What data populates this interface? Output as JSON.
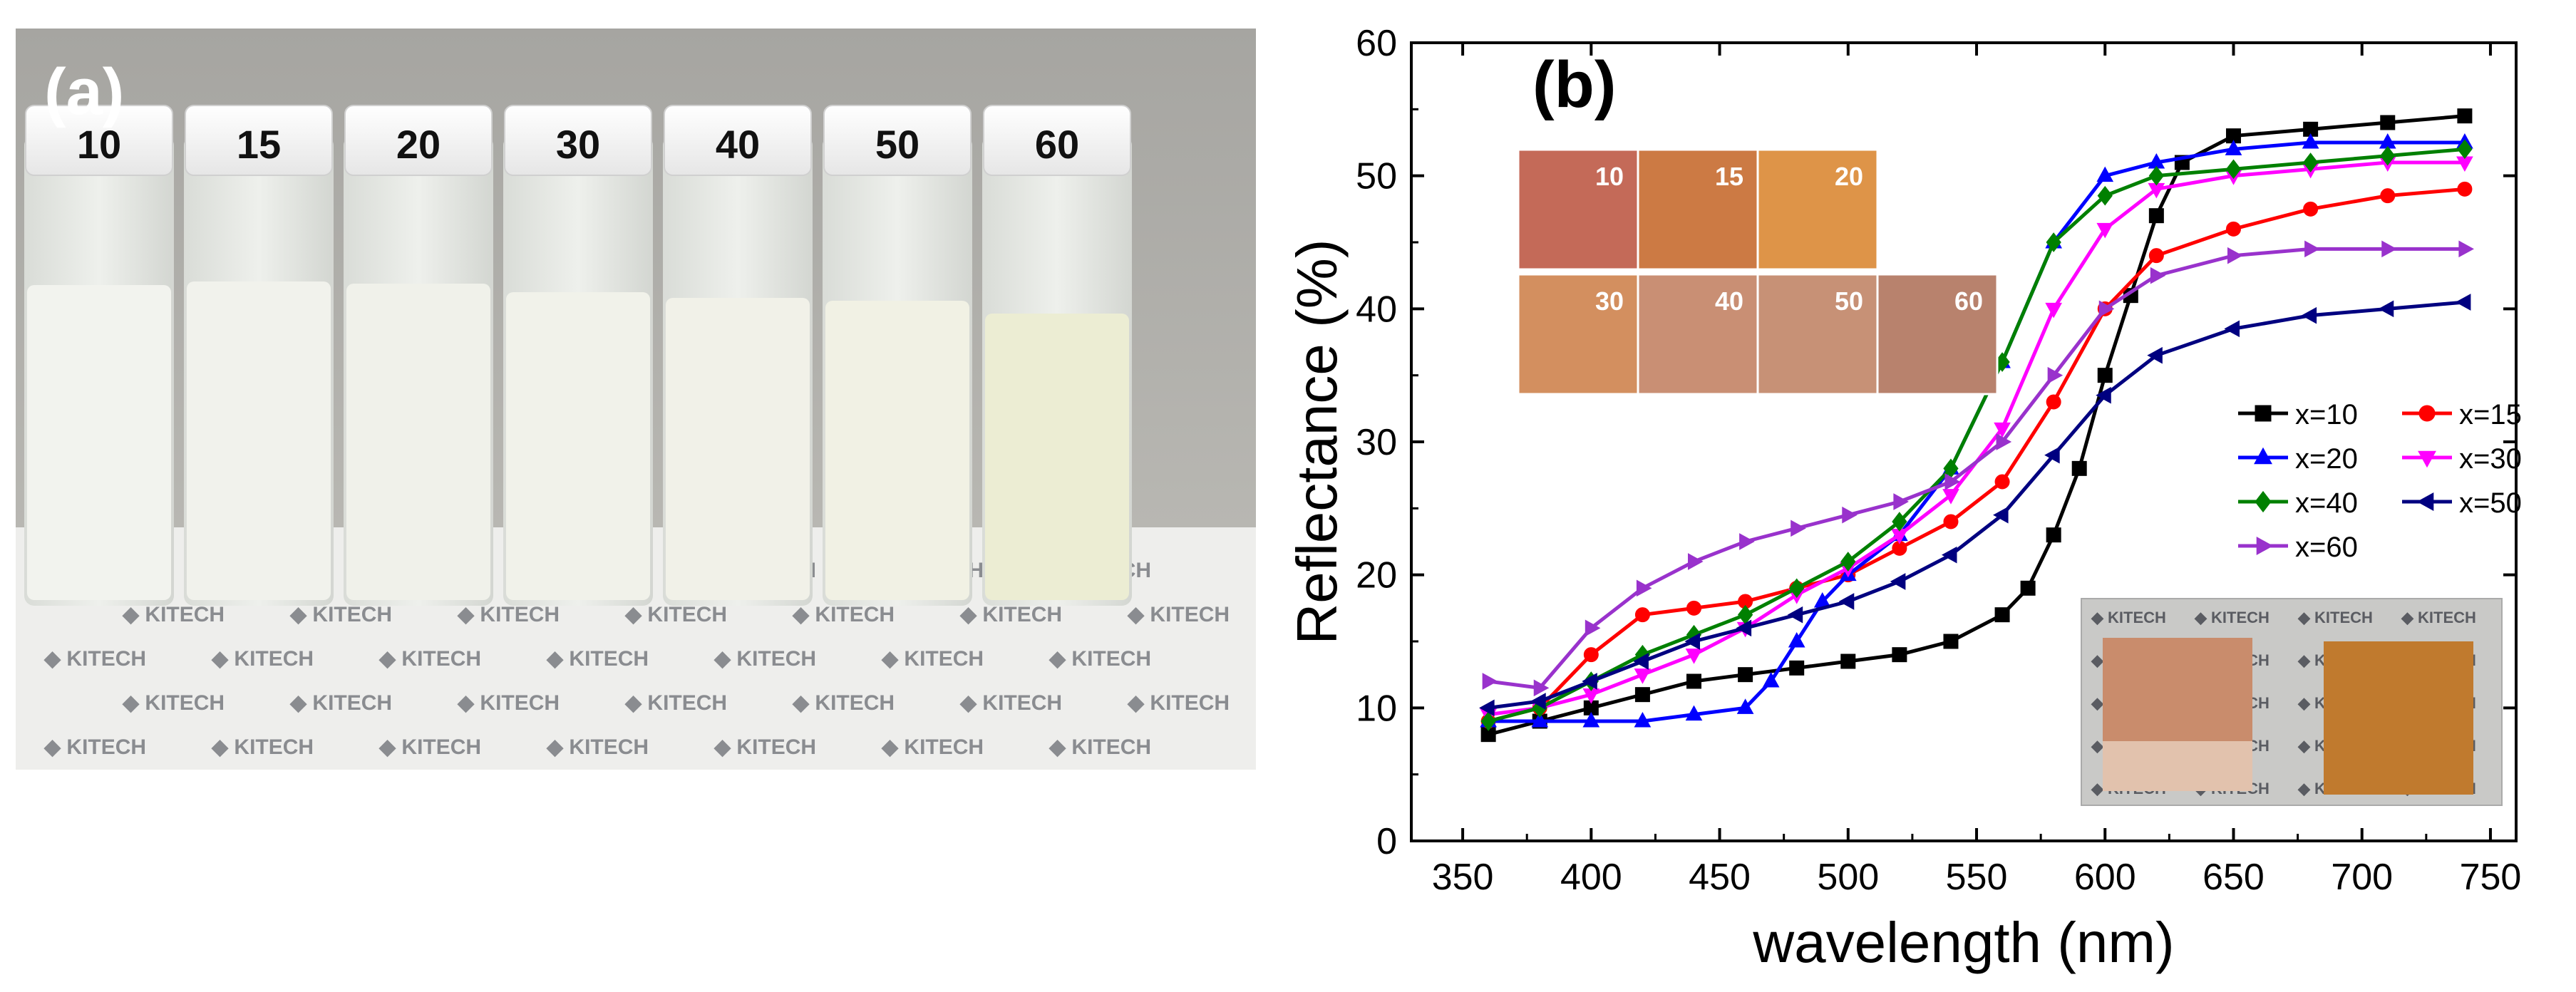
{
  "panel_a": {
    "label": "(a)",
    "vial_labels": [
      "10",
      "15",
      "20",
      "30",
      "40",
      "50",
      "60"
    ],
    "watermark": "KITECH"
  },
  "panel_b": {
    "label": "(b)",
    "swatches": [
      "10",
      "15",
      "20",
      "30",
      "40",
      "50",
      "60"
    ],
    "inset_watermark": "KITECH"
  },
  "colors": {
    "x10": "#000000",
    "x15": "#ff0000",
    "x20": "#0000ff",
    "x30": "#ff00ff",
    "x40": "#008000",
    "x50": "#000080",
    "x60": "#9932cc",
    "swatch_colors": [
      "#c46a58",
      "#cc7a44",
      "#de9448",
      "#d38f5f",
      "#c98f74",
      "#c79176",
      "#b8826d"
    ]
  },
  "chart_data": {
    "type": "line",
    "xlabel": "wavelength (nm)",
    "ylabel": "Reflectance (%)",
    "xlim": [
      330,
      760
    ],
    "ylim": [
      0,
      60
    ],
    "xticks": [
      350,
      400,
      450,
      500,
      550,
      600,
      650,
      700,
      750
    ],
    "yticks": [
      0,
      10,
      20,
      30,
      40,
      50,
      60
    ],
    "legend_position": "right",
    "series": [
      {
        "name": "x=10",
        "x": [
          360,
          380,
          400,
          420,
          440,
          460,
          480,
          500,
          520,
          540,
          560,
          570,
          580,
          590,
          600,
          610,
          620,
          630,
          650,
          680,
          710,
          740
        ],
        "y": [
          8,
          9,
          10,
          11,
          12,
          12.5,
          13,
          13.5,
          14,
          15,
          17,
          19,
          23,
          28,
          35,
          41,
          47,
          51,
          53,
          53.5,
          54,
          54.5
        ]
      },
      {
        "name": "x=15",
        "x": [
          360,
          380,
          400,
          420,
          440,
          460,
          480,
          500,
          520,
          540,
          560,
          580,
          600,
          620,
          650,
          680,
          710,
          740
        ],
        "y": [
          9,
          10,
          14,
          17,
          17.5,
          18,
          19,
          20,
          22,
          24,
          27,
          33,
          40,
          44,
          46,
          47.5,
          48.5,
          49
        ]
      },
      {
        "name": "x=20",
        "x": [
          360,
          380,
          400,
          420,
          440,
          460,
          470,
          480,
          490,
          500,
          520,
          540,
          560,
          580,
          600,
          620,
          650,
          680,
          710,
          740
        ],
        "y": [
          9,
          9,
          9,
          9,
          9.5,
          10,
          12,
          15,
          18,
          20,
          23,
          28,
          36,
          45,
          50,
          51,
          52,
          52.5,
          52.5,
          52.5
        ]
      },
      {
        "name": "x=30",
        "x": [
          360,
          380,
          400,
          420,
          440,
          460,
          480,
          500,
          520,
          540,
          560,
          580,
          600,
          620,
          650,
          680,
          710,
          740
        ],
        "y": [
          9.5,
          10,
          11,
          12.5,
          14,
          16,
          18.5,
          20.5,
          23,
          26,
          31,
          40,
          46,
          49,
          50,
          50.5,
          51,
          51
        ]
      },
      {
        "name": "x=40",
        "x": [
          360,
          380,
          400,
          420,
          440,
          460,
          480,
          500,
          520,
          540,
          560,
          580,
          600,
          620,
          650,
          680,
          710,
          740
        ],
        "y": [
          9,
          10,
          12,
          14,
          15.5,
          17,
          19,
          21,
          24,
          28,
          36,
          45,
          48.5,
          50,
          50.5,
          51,
          51.5,
          52
        ]
      },
      {
        "name": "x=50",
        "x": [
          360,
          380,
          400,
          420,
          440,
          460,
          480,
          500,
          520,
          540,
          560,
          580,
          600,
          620,
          650,
          680,
          710,
          740
        ],
        "y": [
          10,
          10.5,
          12,
          13.5,
          15,
          16,
          17,
          18,
          19.5,
          21.5,
          24.5,
          29,
          33.5,
          36.5,
          38.5,
          39.5,
          40,
          40.5
        ]
      },
      {
        "name": "x=60",
        "x": [
          360,
          380,
          400,
          420,
          440,
          460,
          480,
          500,
          520,
          540,
          560,
          580,
          600,
          620,
          650,
          680,
          710,
          740
        ],
        "y": [
          12,
          11.5,
          16,
          19,
          21,
          22.5,
          23.5,
          24.5,
          25.5,
          27,
          30,
          35,
          40,
          42.5,
          44,
          44.5,
          44.5,
          44.5
        ]
      }
    ]
  }
}
